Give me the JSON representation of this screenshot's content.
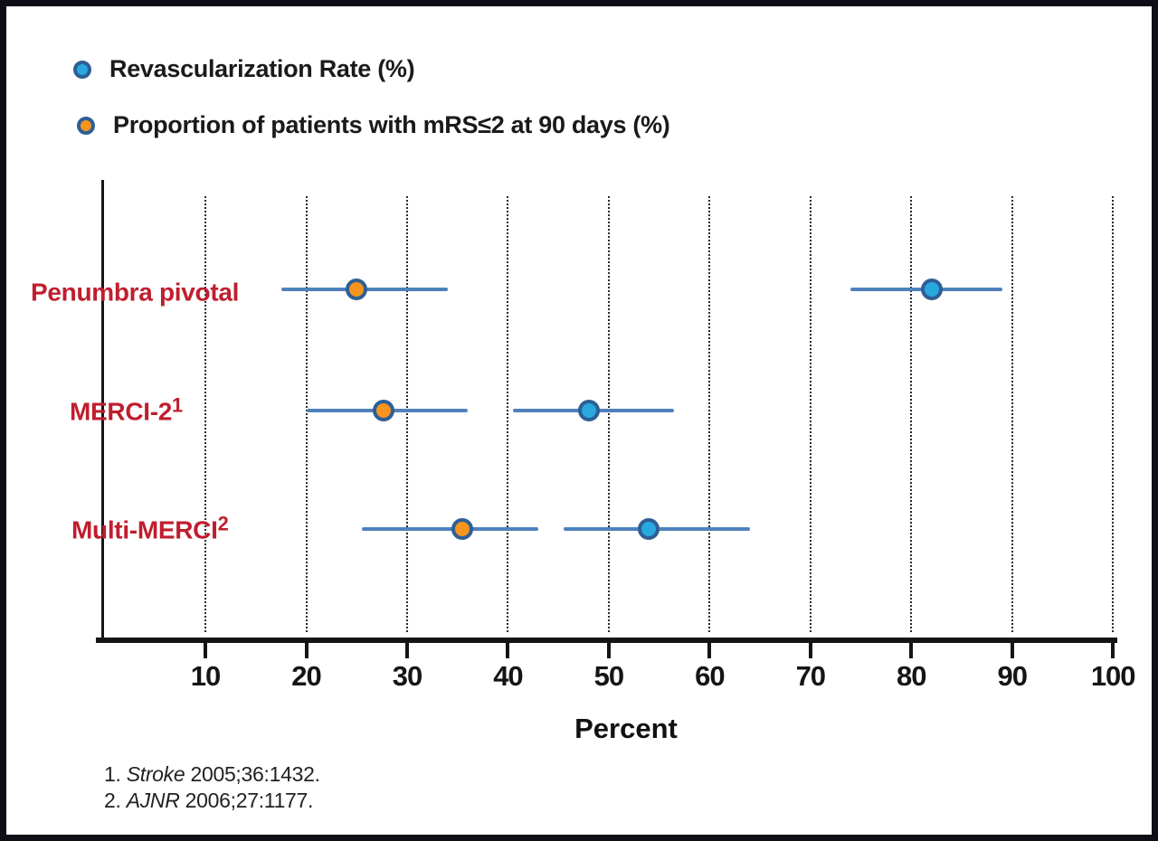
{
  "legend": {
    "items": [
      {
        "label": "Revascularization Rate (%)",
        "marker": "blue-dot"
      },
      {
        "label": "Proportion of patients with mRS≤2 at 90 days (%)",
        "marker": "orange-dot"
      }
    ]
  },
  "chart_data": {
    "type": "scatter",
    "subtype": "horizontal-forest-plot-with-ci",
    "title": "",
    "xlabel": "Percent",
    "ylabel": "",
    "xlim": [
      0,
      100
    ],
    "ticks": [
      10,
      20,
      30,
      40,
      50,
      60,
      70,
      80,
      90,
      100
    ],
    "grid": "vertical-dotted",
    "legend_position": "top-left",
    "studies": [
      {
        "label": "Penumbra pivotal",
        "sup": ""
      },
      {
        "label": "MERCI-2",
        "sup": "1"
      },
      {
        "label": "Multi-MERCI",
        "sup": "2"
      }
    ],
    "series": [
      {
        "name": "Revascularization Rate (%)",
        "fill": "#29a8e0",
        "points": [
          {
            "study": "Penumbra pivotal",
            "value": 82,
            "ci": [
              74,
              89
            ]
          },
          {
            "study": "MERCI-2",
            "value": 48,
            "ci": [
              40.5,
              56.5
            ]
          },
          {
            "study": "Multi-MERCI",
            "value": 54,
            "ci": [
              45.5,
              64
            ]
          }
        ]
      },
      {
        "name": "Proportion of patients with mRS≤2 at 90 days (%)",
        "fill": "#f7941d",
        "points": [
          {
            "study": "Penumbra pivotal",
            "value": 25,
            "ci": [
              17.5,
              34
            ]
          },
          {
            "study": "MERCI-2",
            "value": 27.7,
            "ci": [
              20,
              36
            ]
          },
          {
            "study": "Multi-MERCI",
            "value": 35.5,
            "ci": [
              25.5,
              43
            ]
          }
        ]
      }
    ],
    "colors": {
      "ci_line": "#4f81bd",
      "marker_ring": "#2e5f94",
      "blue_fill": "#29a8e0",
      "orange_fill": "#f7941d",
      "row_label": "#bf1e2e",
      "axis": "#151515"
    }
  },
  "footnotes": [
    {
      "num": "1.",
      "journal": "Stroke",
      "ref": "2005;36:1432."
    },
    {
      "num": "2.",
      "journal": "AJNR",
      "ref": "2006;27:1177."
    }
  ]
}
